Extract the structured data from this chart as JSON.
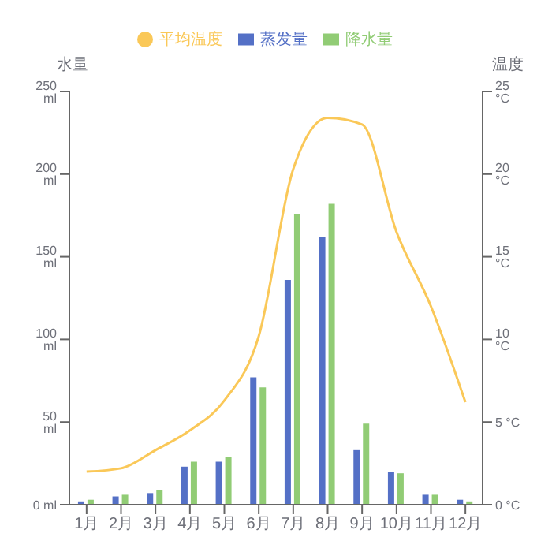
{
  "chart_data": {
    "type": "bar",
    "categories": [
      "1月",
      "2月",
      "3月",
      "4月",
      "5月",
      "6月",
      "7月",
      "8月",
      "9月",
      "10月",
      "11月",
      "12月"
    ],
    "ylabel": "水量",
    "y2label": "温度",
    "series": [
      {
        "name": "蒸发量",
        "color": "#5470c6",
        "values": [
          2,
          5,
          7,
          23,
          26,
          77,
          136,
          162,
          33,
          20,
          6,
          3
        ]
      },
      {
        "name": "降水量",
        "color": "#91cc75",
        "values": [
          3,
          6,
          9,
          26,
          29,
          71,
          176,
          182,
          49,
          19,
          6,
          2
        ]
      },
      {
        "name": "平均温度",
        "type": "line",
        "axis": "y2",
        "color": "#fac858",
        "values": [
          2.0,
          2.2,
          3.3,
          4.5,
          6.3,
          10.2,
          20.3,
          23.4,
          23.0,
          16.5,
          12.0,
          6.2
        ]
      }
    ],
    "ylim": [
      0,
      250
    ],
    "yticks": [
      {
        "value": 0,
        "label": "0 ml"
      },
      {
        "value": 50,
        "label": "50 ml"
      },
      {
        "value": 100,
        "label": "100 ml"
      },
      {
        "value": 150,
        "label": "150 ml"
      },
      {
        "value": 200,
        "label": "200 ml"
      },
      {
        "value": 250,
        "label": "250 ml"
      }
    ],
    "y2lim": [
      0,
      25
    ],
    "y2ticks": [
      {
        "value": 0,
        "label": "0 °C"
      },
      {
        "value": 5,
        "label": "5 °C"
      },
      {
        "value": 10,
        "label": "10 °C"
      },
      {
        "value": 15,
        "label": "15 °C"
      },
      {
        "value": 20,
        "label": "20 °C"
      },
      {
        "value": 25,
        "label": "25 °C"
      }
    ],
    "legend": "top",
    "grid": false,
    "marker": "none",
    "line_style": "solid"
  }
}
